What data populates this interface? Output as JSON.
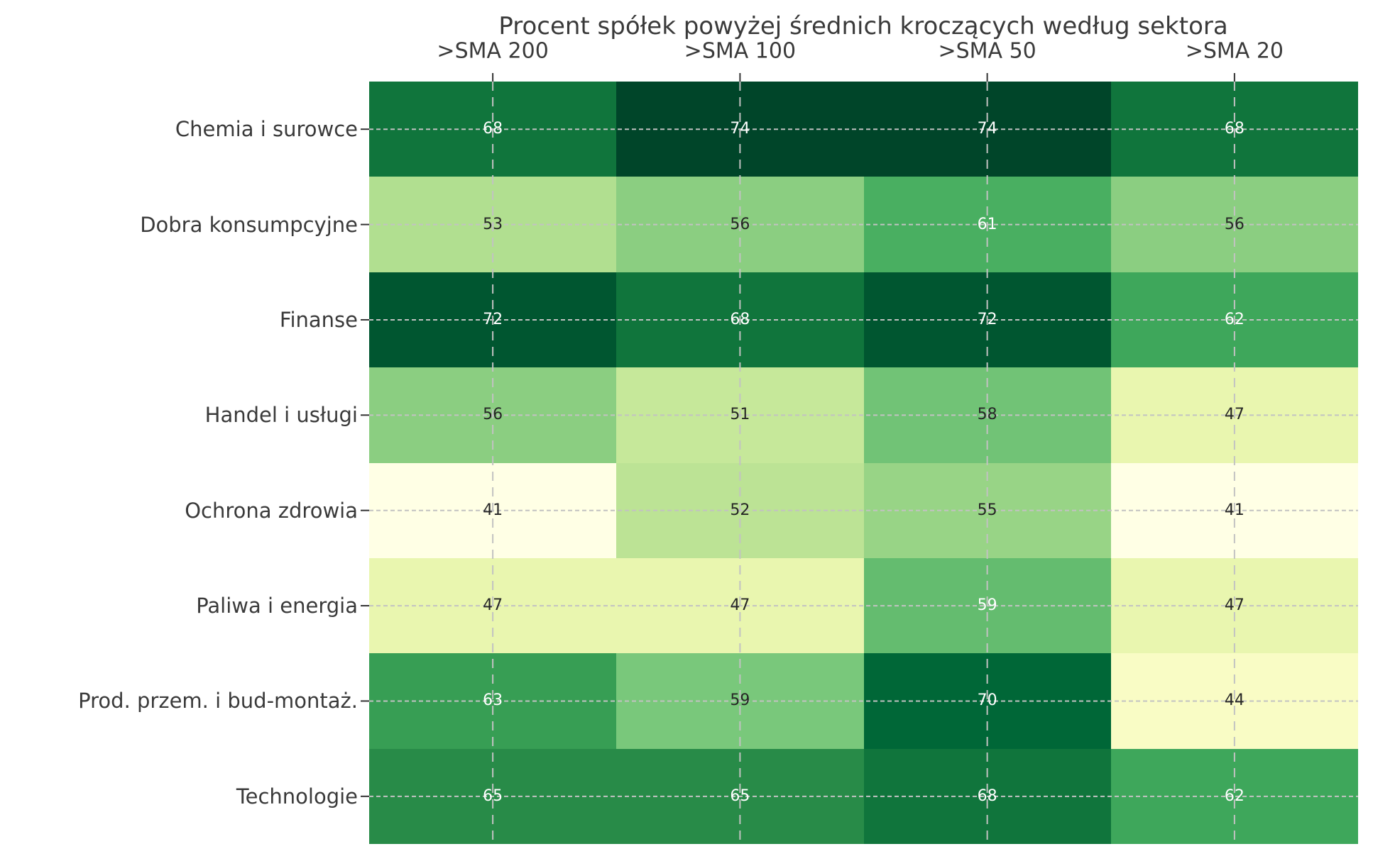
{
  "chart_data": {
    "type": "heatmap",
    "title": "Procent spółek powyżej średnich kroczących według sektora",
    "columns": [
      ">SMA 200",
      ">SMA 100",
      ">SMA 50",
      ">SMA 20"
    ],
    "rows": [
      "Chemia i surowce",
      "Dobra konsumpcyjne",
      "Finanse",
      "Handel i usługi",
      "Ochrona zdrowia",
      "Paliwa i energia",
      "Prod. przem. i bud-montaż.",
      "Technologie"
    ],
    "values": [
      [
        68,
        74,
        74,
        68
      ],
      [
        53,
        56,
        61,
        56
      ],
      [
        72,
        68,
        72,
        62
      ],
      [
        56,
        51,
        58,
        47
      ],
      [
        41,
        52,
        55,
        41
      ],
      [
        47,
        47,
        59,
        47
      ],
      [
        63,
        59,
        70,
        44
      ],
      [
        65,
        65,
        68,
        62
      ]
    ],
    "colormap": "YlGn",
    "vmin": 41,
    "vmax": 74,
    "grid_style": "dashed",
    "legend": "none",
    "cell_colors": [
      [
        "#10753C",
        "#004529",
        "#004529",
        "#10753C"
      ],
      [
        "#B1DF90",
        "#8BCE81",
        "#49AF61",
        "#8BCE81"
      ],
      [
        "#005630",
        "#10753C",
        "#005630",
        "#3EA75B"
      ],
      [
        "#8BCE81",
        "#C6E89A",
        "#71C376",
        "#E9F6AF"
      ],
      [
        "#FFFFE5",
        "#BCE395",
        "#98D486",
        "#FFFFE5"
      ],
      [
        "#E9F6AF",
        "#E9F6AF",
        "#64BC6F",
        "#E9F6AF"
      ],
      [
        "#379E54",
        "#79C87B",
        "#006737",
        "#F9FCC5"
      ],
      [
        "#288B48",
        "#288B48",
        "#10753C",
        "#3EA75B"
      ]
    ],
    "text_colors": [
      [
        "#ffffff",
        "#ffffff",
        "#ffffff",
        "#ffffff"
      ],
      [
        "#262626",
        "#262626",
        "#ffffff",
        "#262626"
      ],
      [
        "#ffffff",
        "#ffffff",
        "#ffffff",
        "#ffffff"
      ],
      [
        "#262626",
        "#262626",
        "#262626",
        "#262626"
      ],
      [
        "#262626",
        "#262626",
        "#262626",
        "#262626"
      ],
      [
        "#262626",
        "#262626",
        "#ffffff",
        "#262626"
      ],
      [
        "#ffffff",
        "#262626",
        "#ffffff",
        "#262626"
      ],
      [
        "#ffffff",
        "#ffffff",
        "#ffffff",
        "#ffffff"
      ]
    ],
    "colors": {
      "background": "#ffffff",
      "label_text": "#3a3a3a",
      "grid_line": "#c2c2c2",
      "tick_mark": "#333333",
      "annot_dark": "#262626",
      "annot_light": "#ffffff"
    }
  }
}
